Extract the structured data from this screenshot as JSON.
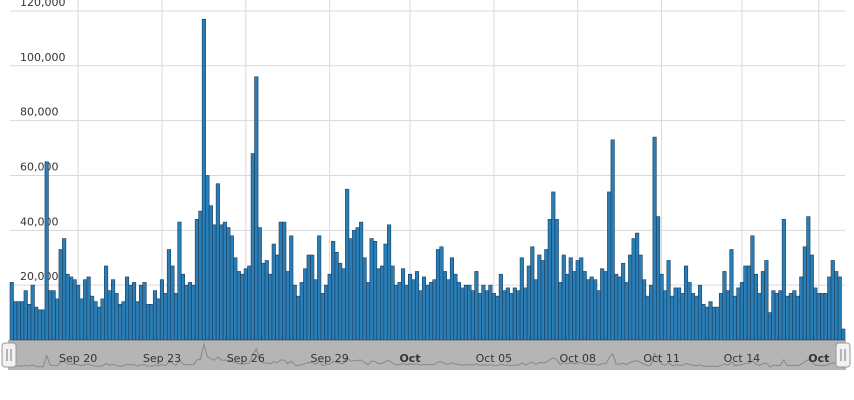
{
  "chart_data": {
    "type": "bar",
    "categories": [
      null,
      null,
      null,
      null,
      null,
      null,
      null,
      null,
      null,
      null,
      null,
      null,
      null,
      null,
      null,
      null,
      null,
      null,
      null,
      "Sep 20",
      null,
      null,
      null,
      null,
      null,
      null,
      null,
      null,
      null,
      null,
      null,
      null,
      null,
      null,
      null,
      null,
      null,
      null,
      null,
      null,
      null,
      null,
      null,
      "Sep 23",
      null,
      null,
      null,
      null,
      null,
      null,
      null,
      null,
      null,
      null,
      null,
      null,
      null,
      null,
      null,
      null,
      null,
      null,
      null,
      null,
      null,
      null,
      null,
      "Sep 26",
      null,
      null,
      null,
      null,
      null,
      null,
      null,
      null,
      null,
      null,
      null,
      null,
      null,
      null,
      null,
      null,
      null,
      null,
      null,
      null,
      null,
      null,
      null,
      "Sep 29",
      null,
      null,
      null,
      null,
      null,
      null,
      null,
      null,
      null,
      null,
      null,
      null,
      null,
      null,
      null,
      null,
      null,
      null,
      null,
      null,
      null,
      null,
      "Oct",
      null,
      null,
      null,
      null,
      null,
      null,
      null,
      null,
      null,
      null,
      null,
      null,
      null,
      null,
      null,
      null,
      null,
      null,
      null,
      null,
      null,
      null,
      null,
      "Oct 05",
      null,
      null,
      null,
      null,
      null,
      null,
      null,
      null,
      null,
      null,
      null,
      null,
      null,
      null,
      null,
      null,
      null,
      null,
      null,
      null,
      null,
      null,
      null,
      "Oct 08",
      null,
      null,
      null,
      null,
      null,
      null,
      null,
      null,
      null,
      null,
      null,
      null,
      null,
      null,
      null,
      null,
      null,
      null,
      null,
      null,
      null,
      null,
      null,
      "Oct 11",
      null,
      null,
      null,
      null,
      null,
      null,
      null,
      null,
      null,
      null,
      null,
      null,
      null,
      null,
      null,
      null,
      null,
      null,
      null,
      null,
      null,
      null,
      "Oct 14",
      null,
      null,
      null,
      null,
      null,
      null,
      null,
      null,
      null,
      null,
      null,
      null,
      null,
      null,
      null,
      null,
      null,
      null,
      null,
      null,
      null,
      "Oct",
      null,
      null,
      null,
      null,
      null,
      null,
      null
    ],
    "values": [
      21000,
      14000,
      14000,
      14000,
      18000,
      13000,
      20000,
      12000,
      11000,
      11000,
      65000,
      18000,
      18000,
      15000,
      33000,
      37000,
      24000,
      23000,
      22000,
      20000,
      15000,
      22000,
      23000,
      16000,
      14000,
      12000,
      15000,
      27000,
      18000,
      22000,
      17000,
      13000,
      14000,
      23000,
      20000,
      21000,
      14000,
      20000,
      21000,
      13000,
      13000,
      18000,
      15000,
      22000,
      17000,
      33000,
      27000,
      17000,
      43000,
      24000,
      20000,
      21000,
      20000,
      44000,
      47000,
      117000,
      60000,
      49000,
      42000,
      57000,
      42000,
      43000,
      41000,
      38000,
      30000,
      25000,
      24000,
      26000,
      27000,
      68000,
      96000,
      41000,
      28000,
      29000,
      24000,
      35000,
      31000,
      43000,
      43000,
      25000,
      38000,
      20000,
      16000,
      21000,
      26000,
      31000,
      31000,
      22000,
      38000,
      17000,
      20000,
      24000,
      36000,
      32000,
      28000,
      26000,
      55000,
      37000,
      40000,
      41000,
      43000,
      30000,
      21000,
      37000,
      36000,
      26000,
      27000,
      35000,
      42000,
      27000,
      20000,
      21000,
      26000,
      20000,
      24000,
      22000,
      25000,
      18000,
      23000,
      20000,
      21000,
      22000,
      33000,
      34000,
      25000,
      22000,
      30000,
      24000,
      21000,
      19000,
      20000,
      20000,
      18000,
      25000,
      17000,
      20000,
      18000,
      20000,
      17000,
      16000,
      24000,
      18000,
      19000,
      17000,
      19000,
      18000,
      30000,
      19000,
      27000,
      34000,
      22000,
      31000,
      29000,
      33000,
      44000,
      54000,
      44000,
      21000,
      31000,
      24000,
      30000,
      25000,
      29000,
      30000,
      25000,
      22000,
      23000,
      22000,
      18000,
      26000,
      25000,
      54000,
      73000,
      24000,
      23000,
      28000,
      21000,
      31000,
      37000,
      39000,
      31000,
      22000,
      16000,
      20000,
      74000,
      45000,
      24000,
      18000,
      29000,
      16000,
      19000,
      19000,
      17000,
      27000,
      21000,
      17000,
      16000,
      20000,
      13000,
      12000,
      14000,
      12000,
      12000,
      17000,
      25000,
      18000,
      33000,
      16000,
      19000,
      21000,
      27000,
      27000,
      38000,
      24000,
      17000,
      25000,
      29000,
      10000,
      18000,
      17000,
      18000,
      44000,
      16000,
      17000,
      18000,
      16000,
      23000,
      34000,
      45000,
      31000,
      19000,
      17000,
      17000,
      17000,
      23000,
      29000,
      25000,
      23000,
      4000
    ],
    "color": "#2a7db5",
    "edge_color": "#1b3f5e",
    "ylim": [
      0,
      124000
    ],
    "yticks": [
      0,
      {
        "value": 20000,
        "label": "20,000"
      },
      {
        "value": 40000,
        "label": "40,000"
      },
      {
        "value": 60000,
        "label": "60,000"
      },
      {
        "value": 80000,
        "label": "80,000"
      },
      {
        "value": 100000,
        "label": "100,000"
      },
      {
        "value": 120000,
        "label": "120,000"
      }
    ],
    "grid": true
  }
}
